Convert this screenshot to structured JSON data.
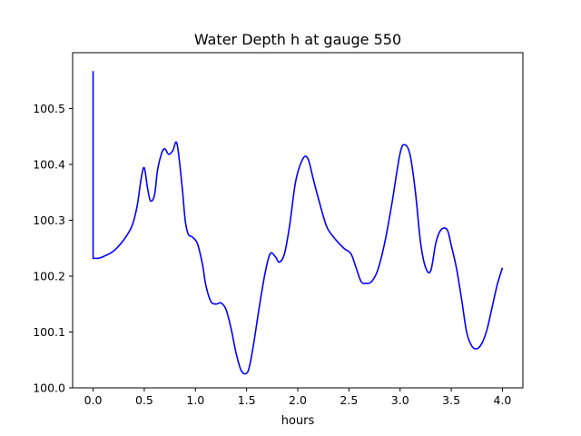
{
  "chart_data": {
    "type": "line",
    "title": "Water Depth h at gauge 550",
    "xlabel": "hours",
    "ylabel": "",
    "xlim": [
      -0.2,
      4.2
    ],
    "ylim": [
      100.0,
      100.6
    ],
    "xticks": [
      0.0,
      0.5,
      1.0,
      1.5,
      2.0,
      2.5,
      3.0,
      3.5,
      4.0
    ],
    "xtick_labels": [
      "0.0",
      "0.5",
      "1.0",
      "1.5",
      "2.0",
      "2.5",
      "3.0",
      "3.5",
      "4.0"
    ],
    "yticks": [
      100.0,
      100.1,
      100.2,
      100.3,
      100.4,
      100.5
    ],
    "ytick_labels": [
      "100.0",
      "100.1",
      "100.2",
      "100.3",
      "100.4",
      "100.5"
    ],
    "grid": false,
    "line_color": "#0000ff",
    "series": [
      {
        "x": [
          0.0,
          0.0,
          0.0,
          0.05,
          0.1,
          0.2,
          0.3,
          0.38,
          0.43,
          0.47,
          0.5,
          0.53,
          0.56,
          0.6,
          0.63,
          0.67,
          0.7,
          0.74,
          0.78,
          0.82,
          0.87,
          0.9,
          0.93,
          0.97,
          1.02,
          1.07,
          1.1,
          1.15,
          1.2,
          1.25,
          1.3,
          1.35,
          1.4,
          1.45,
          1.5,
          1.53,
          1.57,
          1.62,
          1.68,
          1.73,
          1.78,
          1.82,
          1.87,
          1.92,
          1.98,
          2.05,
          2.1,
          2.15,
          2.2,
          2.28,
          2.35,
          2.45,
          2.52,
          2.57,
          2.62,
          2.67,
          2.72,
          2.78,
          2.85,
          2.92,
          3.0,
          3.05,
          3.1,
          3.15,
          3.2,
          3.25,
          3.3,
          3.35,
          3.4,
          3.46,
          3.5,
          3.55,
          3.6,
          3.65,
          3.7,
          3.75,
          3.8,
          3.85,
          3.9,
          3.95,
          4.0
        ],
        "y": [
          100.567,
          100.232,
          100.232,
          100.232,
          100.235,
          100.245,
          100.265,
          100.29,
          100.325,
          100.375,
          100.394,
          100.36,
          100.335,
          100.345,
          100.39,
          100.42,
          100.428,
          100.418,
          100.425,
          100.437,
          100.36,
          100.3,
          100.275,
          100.27,
          100.258,
          100.22,
          100.185,
          100.155,
          100.15,
          100.152,
          100.14,
          100.105,
          100.06,
          100.03,
          100.026,
          100.04,
          100.08,
          100.14,
          100.205,
          100.24,
          100.235,
          100.225,
          100.24,
          100.29,
          100.37,
          100.41,
          100.41,
          100.375,
          100.34,
          100.29,
          100.27,
          100.25,
          100.24,
          100.215,
          100.19,
          100.187,
          100.19,
          100.21,
          100.26,
          100.33,
          100.42,
          100.435,
          100.415,
          100.35,
          100.26,
          100.215,
          100.21,
          100.26,
          100.283,
          100.283,
          100.255,
          100.215,
          100.16,
          100.1,
          100.075,
          100.07,
          100.08,
          100.105,
          100.145,
          100.185,
          100.215
        ]
      }
    ]
  }
}
